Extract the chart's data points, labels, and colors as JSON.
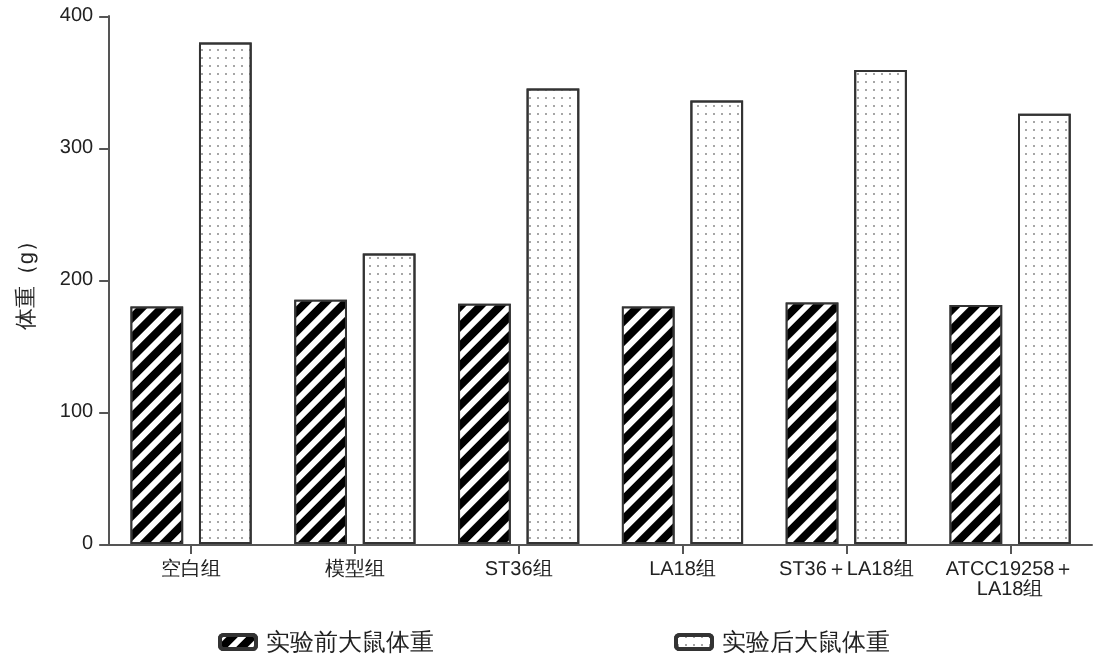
{
  "chart_data": {
    "type": "bar",
    "ylabel": "体重（g）",
    "categories": [
      "空白组",
      "模型组",
      "ST36组",
      "LA18组",
      "ST36＋LA18组",
      "ATCC19258＋LA18组"
    ],
    "series": [
      {
        "name": "实验前大鼠体重",
        "color": "#000000",
        "values": [
          180,
          185,
          182,
          180,
          183,
          181
        ]
      },
      {
        "name": "实验后大鼠体重",
        "color": "#ffffff",
        "values": [
          380,
          220,
          345,
          336,
          359,
          326
        ]
      }
    ],
    "ylim": [
      0,
      400
    ],
    "yticks": [
      0,
      100,
      200,
      300,
      400
    ],
    "grid": false,
    "legend": "bottom"
  }
}
